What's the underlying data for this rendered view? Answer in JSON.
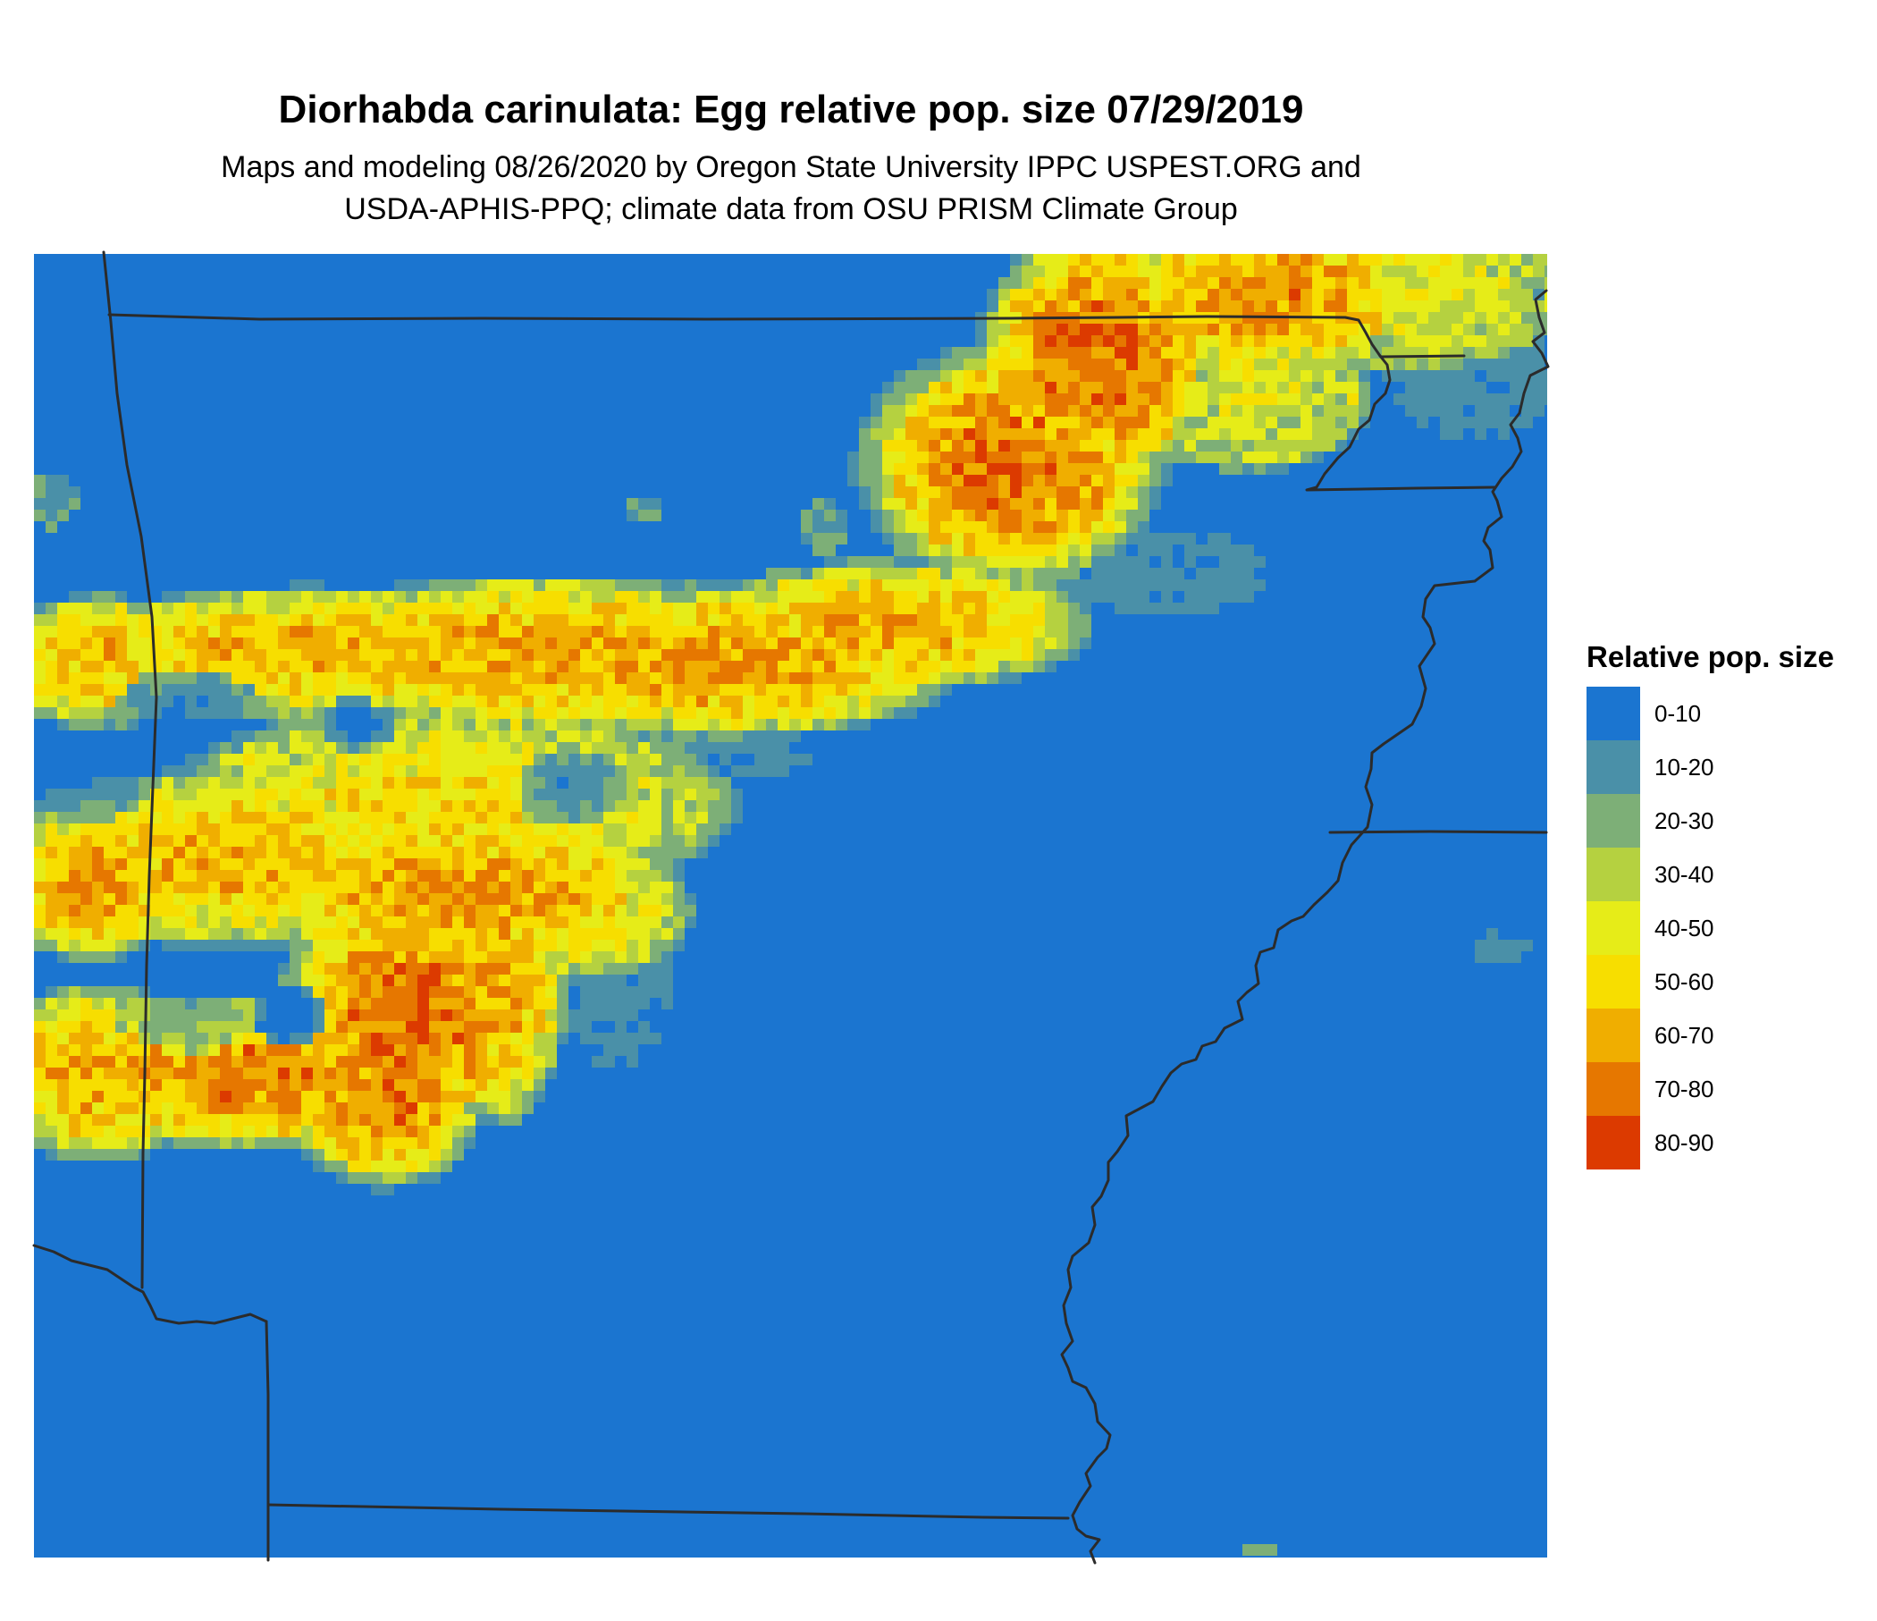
{
  "title": "Diorhabda carinulata: Egg relative pop. size 07/29/2019",
  "subtitle_line1": "Maps and modeling 08/26/2020 by Oregon State University IPPC USPEST.ORG and",
  "subtitle_line2": "USDA-APHIS-PPQ; climate data from OSU PRISM Climate Group",
  "legend": {
    "title": "Relative pop. size",
    "items": [
      {
        "label": "0-10",
        "color": "#1B75D0"
      },
      {
        "label": "10-20",
        "color": "#4A90A8"
      },
      {
        "label": "20-30",
        "color": "#7DAF77"
      },
      {
        "label": "30-40",
        "color": "#B5D140"
      },
      {
        "label": "40-50",
        "color": "#E6EC18"
      },
      {
        "label": "50-60",
        "color": "#F7DE00"
      },
      {
        "label": "60-70",
        "color": "#F0AE00"
      },
      {
        "label": "70-80",
        "color": "#E67700"
      },
      {
        "label": "80-90",
        "color": "#DC3A00"
      }
    ]
  },
  "colors": {
    "border_line": "#2B2B2B",
    "background": "#FFFFFF"
  }
}
